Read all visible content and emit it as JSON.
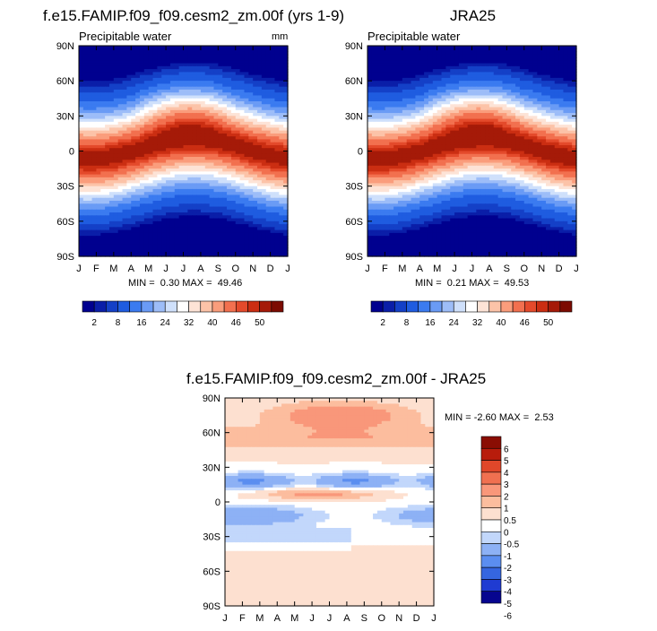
{
  "colors": {
    "palette": [
      "#00008f",
      "#0a1ea8",
      "#1440c7",
      "#1f5ce0",
      "#3b7bf0",
      "#6a9bf5",
      "#9dbdf8",
      "#cfe0fb",
      "#ffffff",
      "#fde3d6",
      "#fcc3a8",
      "#fa9d7c",
      "#f2704f",
      "#e44a2b",
      "#cb2e12",
      "#a51a08",
      "#7c0b02"
    ],
    "diff_palette": [
      "#06058f",
      "#1f3bd2",
      "#3566e0",
      "#5b8ef0",
      "#8db1f5",
      "#c2d7fb",
      "#ffffff",
      "#fde0d0",
      "#fcbd9e",
      "#f9977a",
      "#f07050",
      "#e0472a",
      "#b81c0c",
      "#8a0d03"
    ]
  },
  "chart_data": [
    {
      "type": "heatmap",
      "title": "f.e15.FAMIP.f09_f09.cesm2_zm.00f (yrs 1-9)",
      "subtitle": "Precipitable water",
      "units": "mm",
      "x_tick_labels": [
        "J",
        "F",
        "M",
        "A",
        "M",
        "J",
        "J",
        "A",
        "S",
        "O",
        "N",
        "D",
        "J"
      ],
      "y_tick_labels": [
        "90N",
        "60N",
        "30N",
        "0",
        "30S",
        "60S",
        "90S"
      ],
      "y_ticks": [
        90,
        60,
        30,
        0,
        -30,
        -60,
        -90
      ],
      "ylim": [
        -90,
        90
      ],
      "min_label": "MIN =",
      "min": "0.30",
      "max_label": "MAX =",
      "max": "49.46",
      "colorbar_labels": [
        "2",
        "8",
        "16",
        "24",
        "32",
        "40",
        "46",
        "50"
      ],
      "colorbar_levels": [
        1,
        2,
        4,
        8,
        12,
        16,
        20,
        24,
        28,
        32,
        36,
        40,
        44,
        46,
        48,
        50
      ],
      "field": {
        "peak": 49.46,
        "floor": 0.3,
        "itcz_amplitude": 9
      }
    },
    {
      "type": "heatmap",
      "title": "JRA25",
      "subtitle": "Precipitable water",
      "x_tick_labels": [
        "J",
        "F",
        "M",
        "A",
        "M",
        "J",
        "J",
        "A",
        "S",
        "O",
        "N",
        "D",
        "J"
      ],
      "y_tick_labels": [
        "90N",
        "60N",
        "30N",
        "0",
        "30S",
        "60S",
        "90S"
      ],
      "y_ticks": [
        90,
        60,
        30,
        0,
        -30,
        -60,
        -90
      ],
      "ylim": [
        -90,
        90
      ],
      "min_label": "MIN =",
      "min": "0.21",
      "max_label": "MAX =",
      "max": "49.53",
      "colorbar_labels": [
        "2",
        "8",
        "16",
        "24",
        "32",
        "40",
        "46",
        "50"
      ],
      "colorbar_levels": [
        1,
        2,
        4,
        8,
        12,
        16,
        20,
        24,
        28,
        32,
        36,
        40,
        44,
        46,
        48,
        50
      ],
      "field": {
        "peak": 49.53,
        "floor": 0.21,
        "itcz_amplitude": 9
      }
    },
    {
      "type": "heatmap",
      "title": "f.e15.FAMIP.f09_f09.cesm2_zm.00f - JRA25",
      "x_tick_labels": [
        "J",
        "F",
        "M",
        "A",
        "M",
        "J",
        "J",
        "A",
        "S",
        "O",
        "N",
        "D",
        "J"
      ],
      "y_tick_labels": [
        "90N",
        "60N",
        "30N",
        "0",
        "30S",
        "60S",
        "90S"
      ],
      "y_ticks": [
        90,
        60,
        30,
        0,
        -30,
        -60,
        -90
      ],
      "ylim": [
        -90,
        90
      ],
      "min_label": "MIN =",
      "min": "-2.60",
      "max_label": "MAX =",
      "max": "2.53",
      "colorbar_labels": [
        "6",
        "5",
        "4",
        "3",
        "2",
        "1",
        "0.5",
        "0",
        "-0.5",
        "-1",
        "-2",
        "-3",
        "-4",
        "-5",
        "-6"
      ],
      "colorbar_levels": [
        -6,
        -5,
        -4,
        -3,
        -2,
        -1,
        -0.5,
        0,
        0.5,
        1,
        2,
        3,
        4,
        5,
        6
      ]
    }
  ]
}
